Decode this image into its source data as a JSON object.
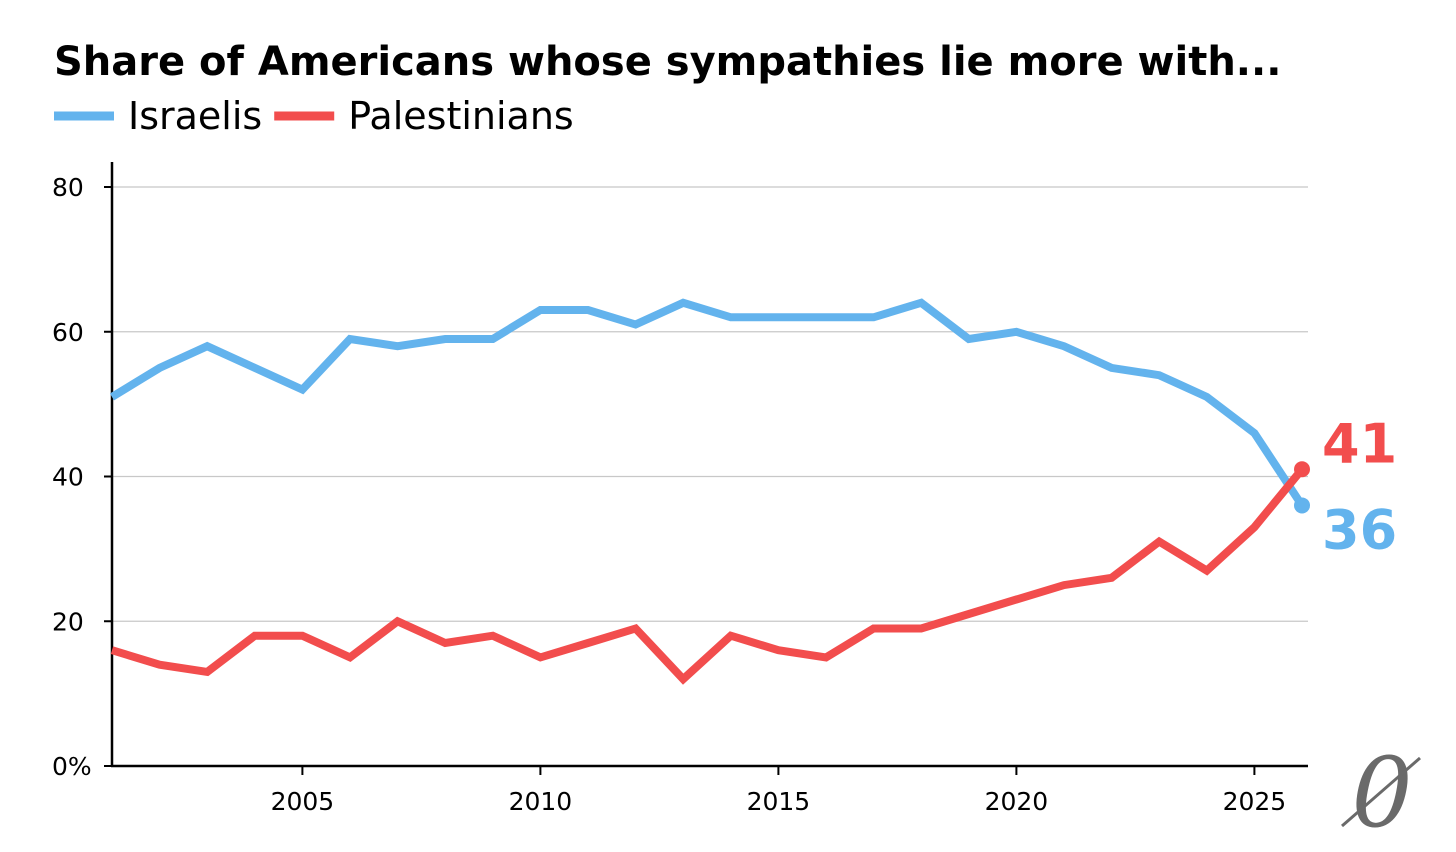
{
  "chart_data": {
    "type": "line",
    "title": "Share of Americans whose sympathies lie more with...",
    "xlabel": "",
    "ylabel": "",
    "x": [
      2001,
      2002,
      2003,
      2004,
      2005,
      2006,
      2007,
      2008,
      2009,
      2010,
      2011,
      2012,
      2013,
      2014,
      2015,
      2016,
      2017,
      2018,
      2019,
      2020,
      2021,
      2022,
      2023,
      2024,
      2025,
      2026
    ],
    "xlim": [
      2001,
      2026
    ],
    "ylim": [
      0,
      80
    ],
    "x_ticks": [
      2005,
      2010,
      2015,
      2020,
      2025
    ],
    "x_tick_labels": [
      "2005",
      "2010",
      "2015",
      "2020",
      "2025"
    ],
    "y_ticks": [
      0,
      20,
      40,
      60,
      80
    ],
    "y_tick_labels": [
      "0%",
      "20",
      "40",
      "60",
      "80"
    ],
    "grid": true,
    "legend_position": "top-left",
    "series": [
      {
        "name": "Israelis",
        "color": "#63b3ed",
        "values": [
          51,
          55,
          58,
          55,
          52,
          59,
          58,
          59,
          59,
          63,
          63,
          61,
          64,
          62,
          62,
          62,
          62,
          64,
          59,
          60,
          58,
          55,
          54,
          51,
          46,
          36
        ],
        "end_label": "36"
      },
      {
        "name": "Palestinians",
        "color": "#f24d4d",
        "values": [
          16,
          14,
          13,
          18,
          18,
          15,
          20,
          17,
          18,
          15,
          17,
          19,
          12,
          18,
          16,
          15,
          19,
          19,
          21,
          23,
          25,
          26,
          31,
          27,
          33,
          41
        ],
        "end_label": "41"
      }
    ],
    "logo": {
      "icon": "publication-logo-icon",
      "glyph": "0"
    }
  }
}
